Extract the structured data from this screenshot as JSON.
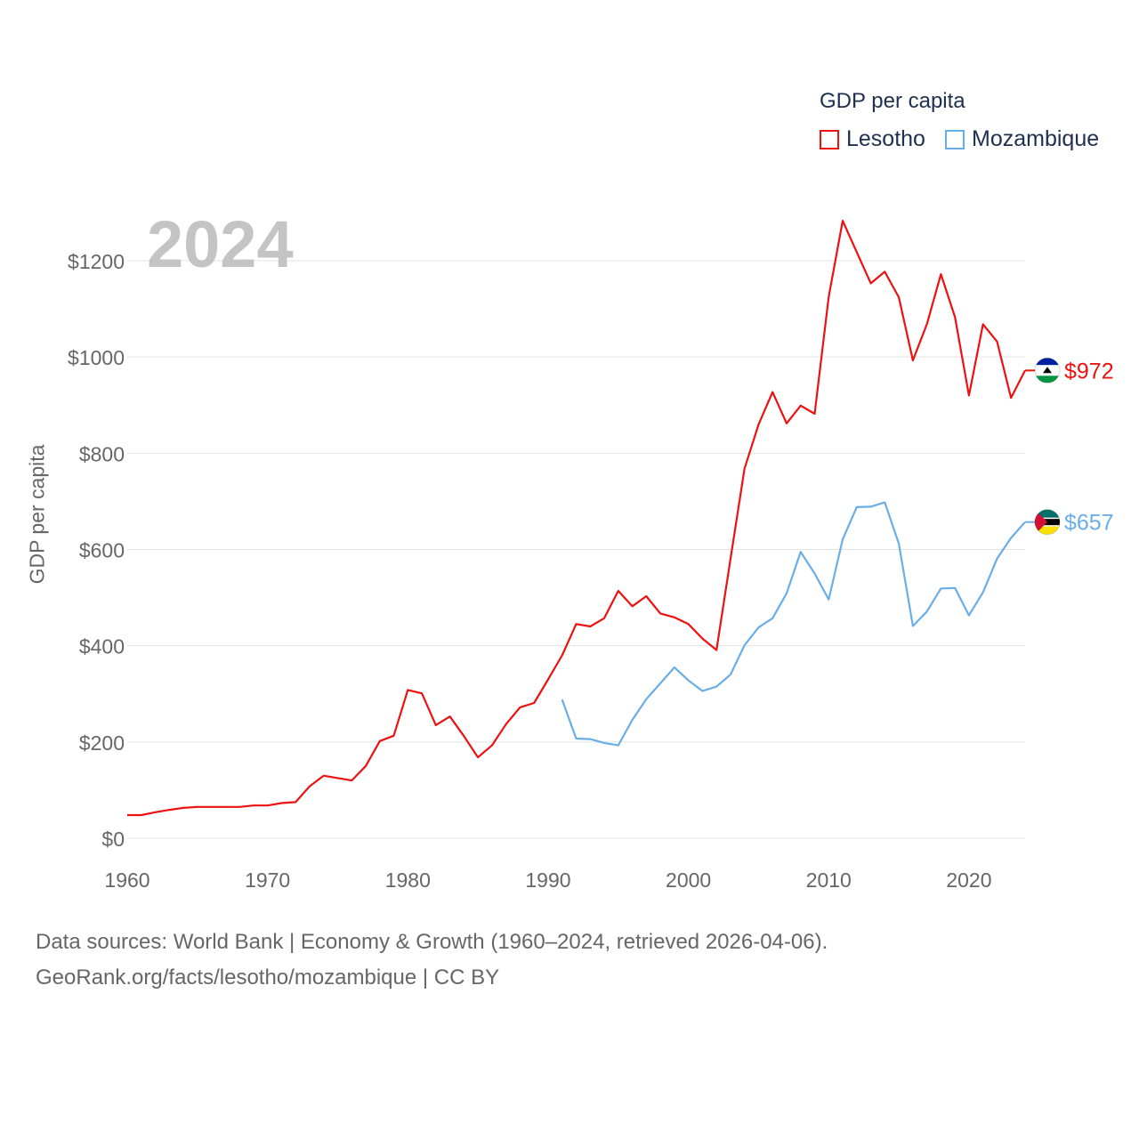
{
  "legend": {
    "title": "GDP per capita",
    "series": [
      {
        "name": "Lesotho",
        "color": "#ee1111"
      },
      {
        "name": "Mozambique",
        "color": "#6aaee8"
      }
    ]
  },
  "footer": {
    "line1": "Data sources: World Bank | Economy & Growth (1960–2024, retrieved 2026-04-06).",
    "line2": "GeoRank.org/facts/lesotho/mozambique | CC BY"
  },
  "chart_data": {
    "type": "line",
    "year_label": "2024",
    "ylabel": "GDP per capita",
    "xlabel": "",
    "xlim": [
      1960,
      2024
    ],
    "ylim": [
      0,
      1200
    ],
    "xticks": [
      "1960",
      "1970",
      "1980",
      "1990",
      "2000",
      "2010",
      "2020"
    ],
    "yticks": [
      "$0",
      "$200",
      "$400",
      "$600",
      "$800",
      "$1000",
      "$1200"
    ],
    "grid": true,
    "legend_position": "top-right",
    "series": [
      {
        "name": "Lesotho",
        "color": "#ee1111",
        "end_label": "$972",
        "x": [
          1960,
          1961,
          1962,
          1963,
          1964,
          1965,
          1966,
          1967,
          1968,
          1969,
          1970,
          1971,
          1972,
          1973,
          1974,
          1975,
          1976,
          1977,
          1978,
          1979,
          1980,
          1981,
          1982,
          1983,
          1984,
          1985,
          1986,
          1987,
          1988,
          1989,
          1990,
          1991,
          1992,
          1993,
          1994,
          1995,
          1996,
          1997,
          1998,
          1999,
          2000,
          2001,
          2002,
          2003,
          2004,
          2005,
          2006,
          2007,
          2008,
          2009,
          2010,
          2011,
          2012,
          2013,
          2014,
          2015,
          2016,
          2017,
          2018,
          2019,
          2020,
          2021,
          2022,
          2023,
          2024
        ],
        "values": [
          48,
          48,
          54,
          59,
          63,
          65,
          65,
          65,
          65,
          68,
          68,
          73,
          75,
          108,
          130,
          125,
          120,
          150,
          202,
          213,
          308,
          301,
          235,
          253,
          212,
          168,
          193,
          237,
          272,
          281,
          330,
          380,
          445,
          440,
          457,
          514,
          482,
          503,
          467,
          459,
          445,
          415,
          391,
          580,
          768,
          860,
          927,
          862,
          899,
          882,
          1125,
          1283,
          1218,
          1153,
          1177,
          1124,
          993,
          1068,
          1172,
          1083,
          920,
          1068,
          1032,
          915,
          972
        ]
      },
      {
        "name": "Mozambique",
        "color": "#6aaee8",
        "end_label": "$657",
        "x": [
          1991,
          1992,
          1993,
          1994,
          1995,
          1996,
          1997,
          1998,
          1999,
          2000,
          2001,
          2002,
          2003,
          2004,
          2005,
          2006,
          2007,
          2008,
          2009,
          2010,
          2011,
          2012,
          2013,
          2014,
          2015,
          2016,
          2017,
          2018,
          2019,
          2020,
          2021,
          2022,
          2023,
          2024
        ],
        "values": [
          288,
          207,
          206,
          198,
          193,
          246,
          289,
          322,
          355,
          328,
          306,
          315,
          340,
          401,
          438,
          457,
          509,
          595,
          550,
          496,
          621,
          688,
          689,
          698,
          612,
          441,
          471,
          519,
          520,
          463,
          511,
          581,
          624,
          657
        ]
      }
    ]
  }
}
